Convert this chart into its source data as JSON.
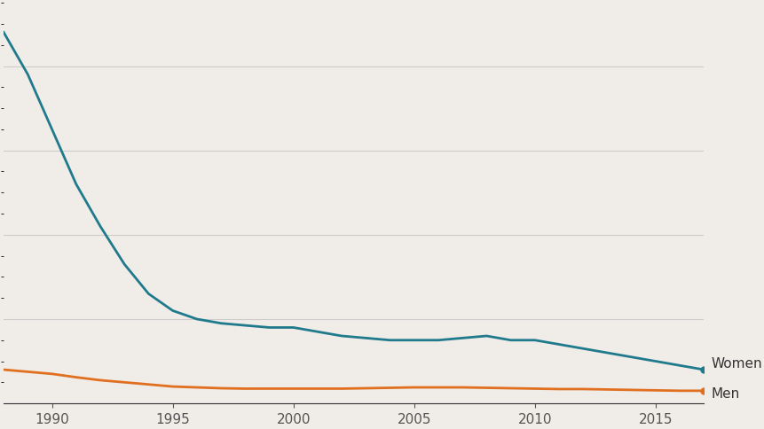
{
  "years": [
    1988,
    1989,
    1990,
    1991,
    1992,
    1993,
    1994,
    1995,
    1996,
    1997,
    1998,
    1999,
    2000,
    2001,
    2002,
    2003,
    2004,
    2005,
    2006,
    2007,
    2008,
    2009,
    2010,
    2011,
    2012,
    2013,
    2014,
    2015,
    2016,
    2017
  ],
  "women": [
    88,
    78,
    65,
    52,
    42,
    33,
    26,
    22,
    20,
    19,
    18.5,
    18,
    18,
    17,
    16,
    15.5,
    15,
    15,
    15,
    15.5,
    16,
    15,
    15,
    14,
    13,
    12,
    11,
    10,
    9,
    8
  ],
  "men": [
    8.0,
    7.5,
    7.0,
    6.2,
    5.5,
    5.0,
    4.5,
    4.0,
    3.8,
    3.6,
    3.5,
    3.5,
    3.5,
    3.5,
    3.5,
    3.6,
    3.7,
    3.8,
    3.8,
    3.8,
    3.7,
    3.6,
    3.5,
    3.4,
    3.4,
    3.3,
    3.2,
    3.1,
    3.0,
    3.0
  ],
  "women_color": "#1f7a8c",
  "men_color": "#e07020",
  "background_color": "#f0ece8",
  "grid_color": "#cccccc",
  "xlim": [
    1988,
    2017
  ],
  "ylim": [
    0,
    95
  ],
  "xticks": [
    1990,
    1995,
    2000,
    2005,
    2010,
    2015
  ],
  "women_label": "Women",
  "men_label": "Men",
  "label_fontsize": 11,
  "tick_fontsize": 11,
  "line_width": 2.0
}
